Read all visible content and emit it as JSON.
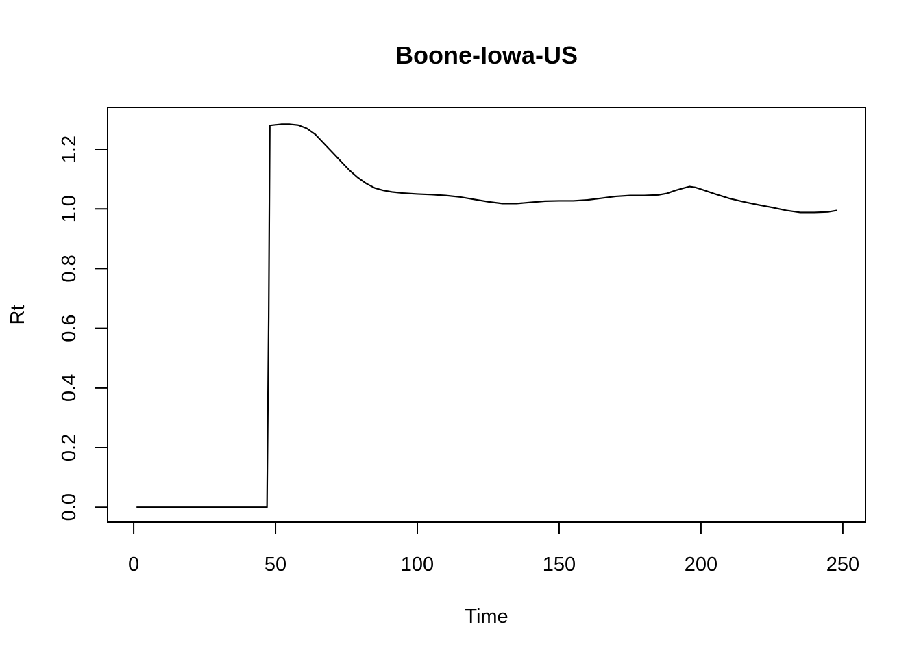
{
  "chart_data": {
    "type": "line",
    "title": "Boone-Iowa-US",
    "xlabel": "Time",
    "ylabel": "Rt",
    "xlim": [
      -9.2,
      258
    ],
    "ylim": [
      -0.05,
      1.34
    ],
    "x_ticks": [
      0,
      50,
      100,
      150,
      200,
      250
    ],
    "y_ticks": [
      0.0,
      0.2,
      0.4,
      0.6,
      0.8,
      1.0,
      1.2
    ],
    "x_tick_labels": [
      "0",
      "50",
      "100",
      "150",
      "200",
      "250"
    ],
    "y_tick_labels": [
      "0.0",
      "0.2",
      "0.4",
      "0.6",
      "0.8",
      "1.0",
      "1.2"
    ],
    "grid": false,
    "legend": "none",
    "series": [
      {
        "x": [
          1,
          47,
          47.3,
          47.6,
          48,
          50,
          52,
          55,
          58,
          61,
          64,
          67,
          70,
          73,
          76,
          79,
          82,
          85,
          88,
          91,
          95,
          100,
          105,
          110,
          115,
          120,
          125,
          130,
          135,
          140,
          145,
          150,
          155,
          160,
          165,
          170,
          175,
          180,
          185,
          188,
          191,
          194,
          196,
          198,
          200,
          205,
          210,
          215,
          220,
          225,
          230,
          235,
          240,
          245,
          248
        ],
        "y": [
          0.0,
          0.0,
          0.32,
          0.64,
          1.28,
          1.282,
          1.284,
          1.284,
          1.281,
          1.27,
          1.25,
          1.22,
          1.19,
          1.16,
          1.13,
          1.105,
          1.085,
          1.07,
          1.062,
          1.057,
          1.053,
          1.05,
          1.048,
          1.045,
          1.04,
          1.032,
          1.024,
          1.018,
          1.018,
          1.022,
          1.026,
          1.027,
          1.027,
          1.03,
          1.036,
          1.042,
          1.045,
          1.045,
          1.047,
          1.052,
          1.062,
          1.07,
          1.075,
          1.072,
          1.066,
          1.05,
          1.035,
          1.024,
          1.014,
          1.005,
          0.995,
          0.988,
          0.988,
          0.99,
          0.995
        ]
      }
    ]
  }
}
